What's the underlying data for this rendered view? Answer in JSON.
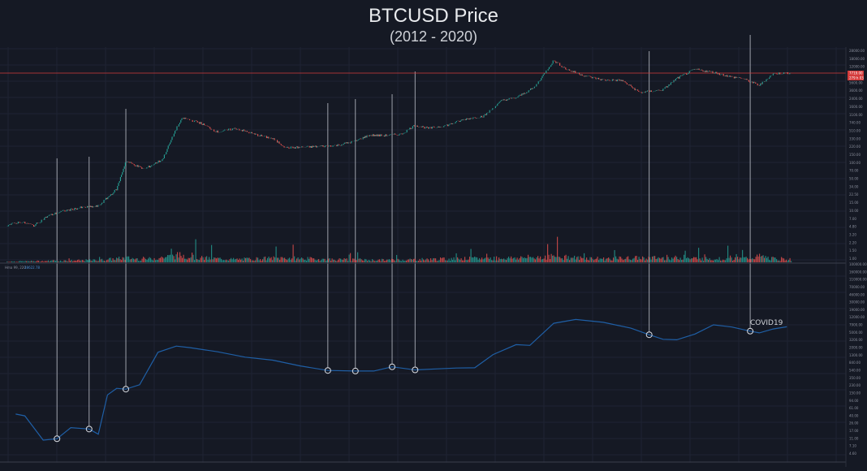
{
  "header": {
    "title": "BTCUSD Price",
    "subtitle": "(2012 - 2020)"
  },
  "indicator_label": {
    "name": "Hma 99, 220",
    "value": "28622.78"
  },
  "annotations": {
    "covid": "COVID19"
  },
  "price_badges": [
    "7719.00",
    "279 h 03"
  ],
  "colors": {
    "background": "#151924",
    "grid": "#1f2433",
    "up": "#26a69a",
    "down": "#ef5350",
    "indicator": "#1f5fa6",
    "price_line": "#d43b3b",
    "marker": "#d9dce3",
    "vline": "#c7cad2",
    "axis_text": "#8a8f9c"
  },
  "chart_data": [
    {
      "type": "line",
      "panel": "price",
      "title": "BTCUSD Price",
      "subtitle": "(2012 - 2020)",
      "scale": "log",
      "x": [
        2012.0,
        2012.15,
        2012.3,
        2012.45,
        2012.6,
        2012.8,
        2013.0,
        2013.2,
        2013.3,
        2013.5,
        2013.7,
        2013.85,
        2013.92,
        2014.1,
        2014.3,
        2014.5,
        2014.7,
        2014.9,
        2015.05,
        2015.3,
        2015.6,
        2015.8,
        2015.95,
        2016.1,
        2016.3,
        2016.45,
        2016.6,
        2016.8,
        2017.0,
        2017.2,
        2017.4,
        2017.55,
        2017.75,
        2017.96,
        2018.1,
        2018.3,
        2018.5,
        2018.7,
        2018.9,
        2019.0,
        2019.15,
        2019.3,
        2019.5,
        2019.7,
        2019.9,
        2020.0,
        2020.2,
        2020.35,
        2020.5
      ],
      "y": [
        5,
        6,
        5,
        8,
        10,
        12,
        13,
        30,
        120,
        80,
        130,
        600,
        1000,
        800,
        500,
        600,
        450,
        360,
        230,
        240,
        260,
        320,
        430,
        420,
        450,
        700,
        600,
        700,
        950,
        1100,
        2400,
        2700,
        4500,
        17000,
        11000,
        8000,
        6500,
        6400,
        3500,
        3700,
        4000,
        7000,
        11000,
        9500,
        7500,
        7200,
        5000,
        8800,
        9200
      ],
      "ylabels": [
        "28000.00",
        "18000.00",
        "12000.00",
        "7719.00",
        "5600.00",
        "3600.00",
        "2400.00",
        "1600.00",
        "1100.00",
        "740.00",
        "510.00",
        "330.00",
        "220.00",
        "150.00",
        "100.00",
        "70.00",
        "50.00",
        "34.00",
        "22.50",
        "15.00",
        "10.00",
        "7.00",
        "4.80",
        "3.20",
        "2.20",
        "1.50",
        "1.00"
      ]
    },
    {
      "type": "bar",
      "panel": "volume",
      "x": [
        2012.0,
        2012.5,
        2013.0,
        2013.3,
        2013.5,
        2013.9,
        2014.1,
        2014.5,
        2015.0,
        2015.5,
        2016.0,
        2016.5,
        2017.0,
        2017.5,
        2017.95,
        2018.2,
        2018.5,
        2018.9,
        2019.3,
        2019.6,
        2020.0,
        2020.2,
        2020.4
      ],
      "values": [
        0.5,
        1,
        1.5,
        3,
        2,
        5,
        3,
        2,
        3,
        2,
        1.5,
        2,
        2.5,
        3,
        4,
        3,
        2.5,
        3,
        3,
        2.5,
        2.5,
        4,
        2
      ]
    },
    {
      "type": "line",
      "panel": "indicator",
      "name": "Hma 99, 220",
      "scale": "log",
      "x": [
        2012.1,
        2012.2,
        2012.4,
        2012.55,
        2012.7,
        2012.9,
        2013.0,
        2013.1,
        2013.2,
        2013.3,
        2013.45,
        2013.65,
        2013.85,
        2014.0,
        2014.3,
        2014.6,
        2014.9,
        2015.2,
        2015.5,
        2015.8,
        2016.0,
        2016.2,
        2016.45,
        2016.7,
        2016.9,
        2017.1,
        2017.3,
        2017.55,
        2017.7,
        2017.96,
        2018.2,
        2018.5,
        2018.8,
        2019.0,
        2019.15,
        2019.3,
        2019.5,
        2019.7,
        2019.9,
        2020.1,
        2020.2,
        2020.35,
        2020.5
      ],
      "y": [
        55,
        50,
        13,
        14,
        26,
        24,
        18,
        160,
        230,
        220,
        280,
        1700,
        2400,
        2200,
        1750,
        1300,
        1100,
        800,
        620,
        600,
        600,
        760,
        640,
        680,
        710,
        720,
        1500,
        2600,
        2500,
        8500,
        10500,
        9000,
        6500,
        4500,
        3500,
        3400,
        4700,
        7800,
        6900,
        5500,
        5000,
        6200,
        7000
      ],
      "ylabels": [
        "100000.00",
        "160000.00",
        "110000.00",
        "70000.00",
        "46000.00",
        "30000.00",
        "19000.00",
        "12000.00",
        "7900.00",
        "5000.00",
        "3200.00",
        "2000.00",
        "1300.00",
        "840.00",
        "540.00",
        "350.00",
        "230.00",
        "150.00",
        "94.00",
        "61.00",
        "40.00",
        "26.00",
        "17.00",
        "11.00",
        "7.10",
        "4.60"
      ]
    }
  ],
  "markers": [
    {
      "x": 2012.55,
      "label": ""
    },
    {
      "x": 2012.9,
      "label": ""
    },
    {
      "x": 2013.3,
      "label": ""
    },
    {
      "x": 2015.5,
      "label": ""
    },
    {
      "x": 2015.8,
      "label": ""
    },
    {
      "x": 2016.2,
      "label": ""
    },
    {
      "x": 2016.45,
      "label": ""
    },
    {
      "x": 2019.0,
      "label": ""
    },
    {
      "x": 2020.1,
      "label": "COVID19"
    }
  ]
}
